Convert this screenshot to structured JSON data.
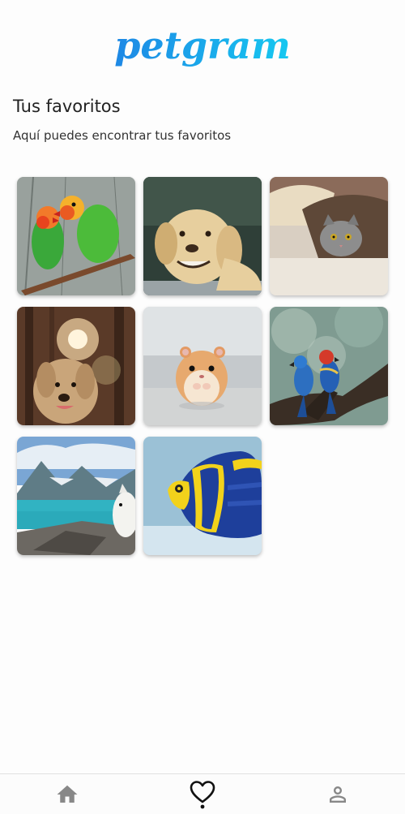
{
  "app": {
    "brand": "petgram",
    "colors": {
      "brand_gradient_start": "#1e88e5",
      "brand_gradient_end": "#16c8f0",
      "nav_icon": "#888888",
      "nav_icon_active": "#111111"
    }
  },
  "favorites": {
    "title": "Tus favoritos",
    "subtitle": "Aquí puedes encontrar tus favoritos",
    "photos": [
      {
        "name": "lovebirds-photo",
        "subject": "lovebirds"
      },
      {
        "name": "labrador-photo",
        "subject": "labrador"
      },
      {
        "name": "cat-under-blanket-photo",
        "subject": "cat"
      },
      {
        "name": "dog-in-forest-photo",
        "subject": "dog in forest"
      },
      {
        "name": "hamster-photo",
        "subject": "hamster"
      },
      {
        "name": "macaws-photo",
        "subject": "macaws"
      },
      {
        "name": "dog-by-lake-photo",
        "subject": "dog by lake"
      },
      {
        "name": "fish-photo",
        "subject": "angelfish"
      }
    ]
  },
  "navbar": {
    "items": [
      {
        "name": "nav-home",
        "icon": "home-icon",
        "active": false
      },
      {
        "name": "nav-favorites",
        "icon": "heart-icon",
        "active": true
      },
      {
        "name": "nav-user",
        "icon": "user-icon",
        "active": false
      }
    ]
  }
}
